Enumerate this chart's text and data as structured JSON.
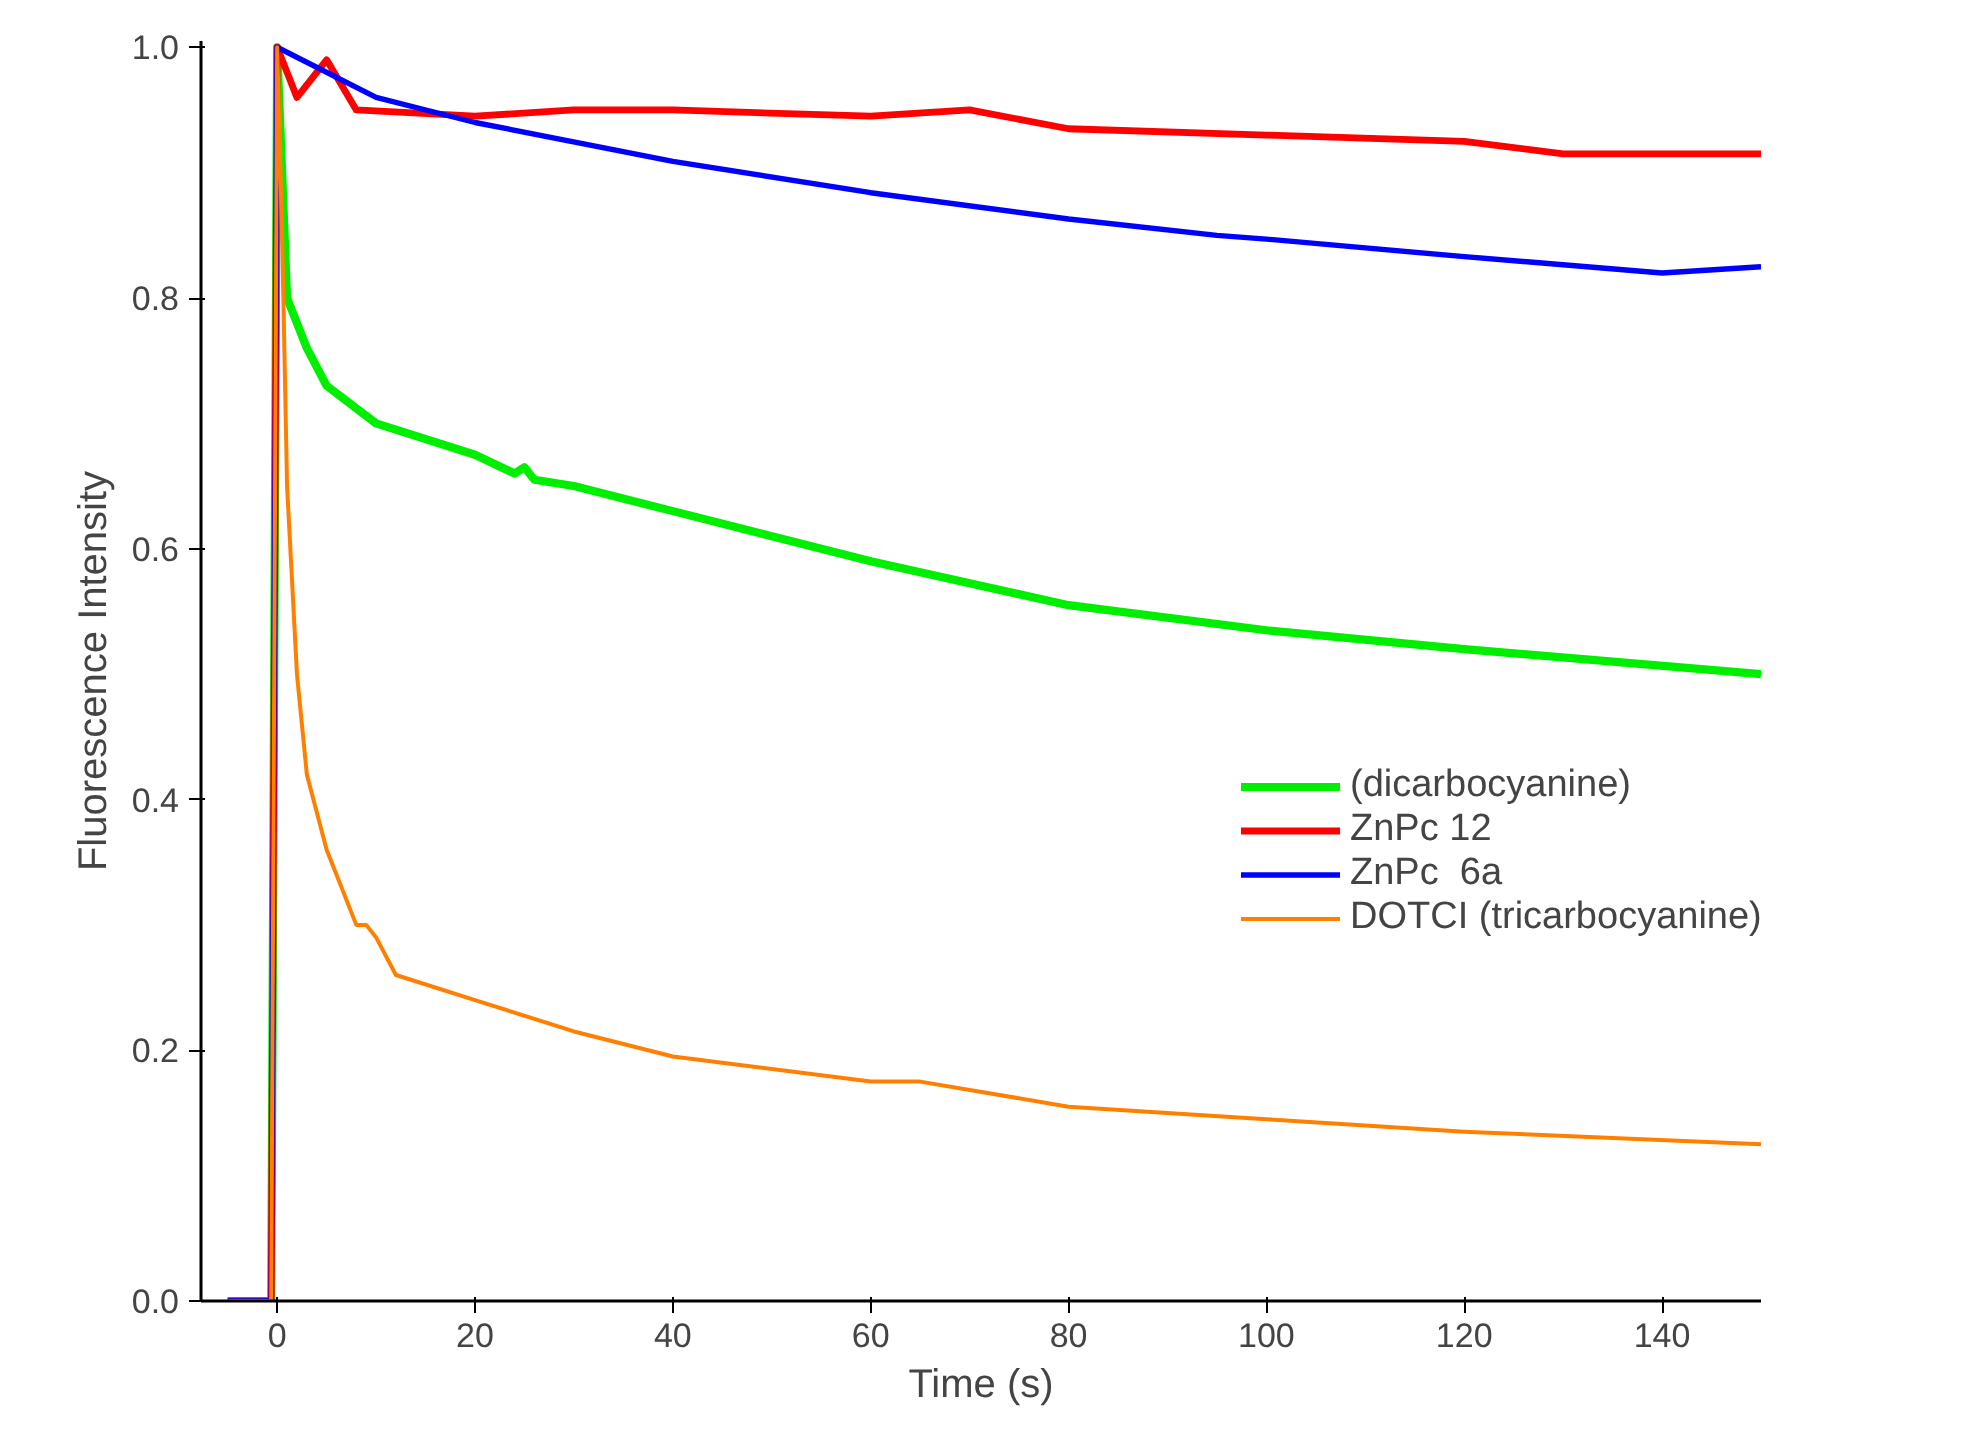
{
  "chart_data": {
    "type": "line",
    "xlabel": "Time (s)",
    "ylabel": "Fluorescence Intensity",
    "xlim": [
      -7.7,
      150
    ],
    "ylim": [
      0,
      1.005
    ],
    "xticks": [
      0,
      20,
      40,
      60,
      80,
      100,
      120,
      140
    ],
    "yticks": [
      {
        "value": 0,
        "label": "0.0"
      },
      0.2,
      0.4,
      0.6,
      0.8,
      {
        "value": 1,
        "label": "1.0"
      }
    ],
    "grid": false,
    "legend": "right",
    "line_style": "solid",
    "marker": "none",
    "series": [
      {
        "name": "(dicarbocyanine)",
        "color": "#00ee00",
        "x": [
          -5,
          -0.6,
          0,
          1,
          3,
          5,
          10,
          20,
          24,
          25,
          26,
          30,
          40,
          60,
          80,
          100,
          120,
          150
        ],
        "values": [
          0,
          0,
          1.0,
          0.8,
          0.76,
          0.73,
          0.7,
          0.675,
          0.66,
          0.665,
          0.655,
          0.65,
          0.63,
          0.59,
          0.555,
          0.535,
          0.52,
          0.5
        ]
      },
      {
        "name": "ZnPc 12",
        "color": "#ff0000",
        "x": [
          -5,
          -0.6,
          0,
          2,
          4,
          5,
          8,
          20,
          30,
          40,
          60,
          70,
          80,
          100,
          120,
          130,
          150
        ],
        "values": [
          0,
          0,
          1.0,
          0.96,
          0.98,
          0.99,
          0.95,
          0.945,
          0.95,
          0.95,
          0.945,
          0.95,
          0.935,
          0.93,
          0.925,
          0.915,
          0.915
        ]
      },
      {
        "name": "ZnPc  6a",
        "color": "#0000ff",
        "x": [
          -5,
          -0.6,
          0,
          10,
          20,
          40,
          60,
          80,
          95,
          100,
          120,
          140,
          150
        ],
        "values": [
          0,
          0,
          1.0,
          0.96,
          0.94,
          0.909,
          0.884,
          0.863,
          0.85,
          0.847,
          0.833,
          0.82,
          0.825
        ]
      },
      {
        "name": "DOTCI (tricarbocyanine)",
        "color": "#ff8000",
        "x": [
          -5,
          -0.6,
          0,
          0.5,
          1,
          2,
          3,
          5,
          8,
          9,
          10,
          12,
          20,
          30,
          40,
          60,
          65,
          80,
          100,
          120,
          150
        ],
        "values": [
          0,
          0,
          1.0,
          0.85,
          0.65,
          0.5,
          0.42,
          0.36,
          0.3,
          0.3,
          0.29,
          0.26,
          0.24,
          0.215,
          0.195,
          0.175,
          0.175,
          0.155,
          0.145,
          0.135,
          0.125
        ]
      }
    ]
  }
}
